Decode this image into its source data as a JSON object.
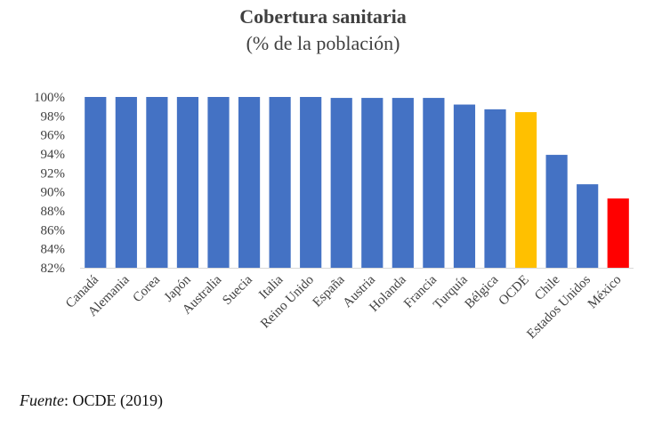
{
  "chart_data": {
    "type": "bar",
    "title": "Cobertura sanitaria",
    "subtitle": "(% de la población)",
    "categories": [
      "Canadá",
      "Alemania",
      "Corea",
      "Japón",
      "Australia",
      "Suecia",
      "Italia",
      "Reino Unido",
      "España",
      "Austria",
      "Holanda",
      "Francia",
      "Turquía",
      "Bélgica",
      "OCDE",
      "Chile",
      "Estados Unidos",
      "México"
    ],
    "values": [
      100,
      100,
      100,
      100,
      100,
      100,
      100,
      100,
      99.9,
      99.9,
      99.9,
      99.9,
      99.2,
      98.7,
      98.4,
      93.9,
      90.8,
      89.3
    ],
    "ylim": [
      82,
      100
    ],
    "yticks": [
      82,
      84,
      86,
      88,
      90,
      92,
      94,
      96,
      98,
      100
    ],
    "ytick_labels": [
      "82%",
      "84%",
      "86%",
      "88%",
      "90%",
      "92%",
      "94%",
      "96%",
      "98%",
      "100%"
    ],
    "colors": {
      "default": "#4472C4",
      "OCDE": "#FFC000",
      "México": "#FF0000"
    },
    "grid": false
  },
  "source": {
    "label": "Fuente",
    "text": ": OCDE (2019)"
  }
}
